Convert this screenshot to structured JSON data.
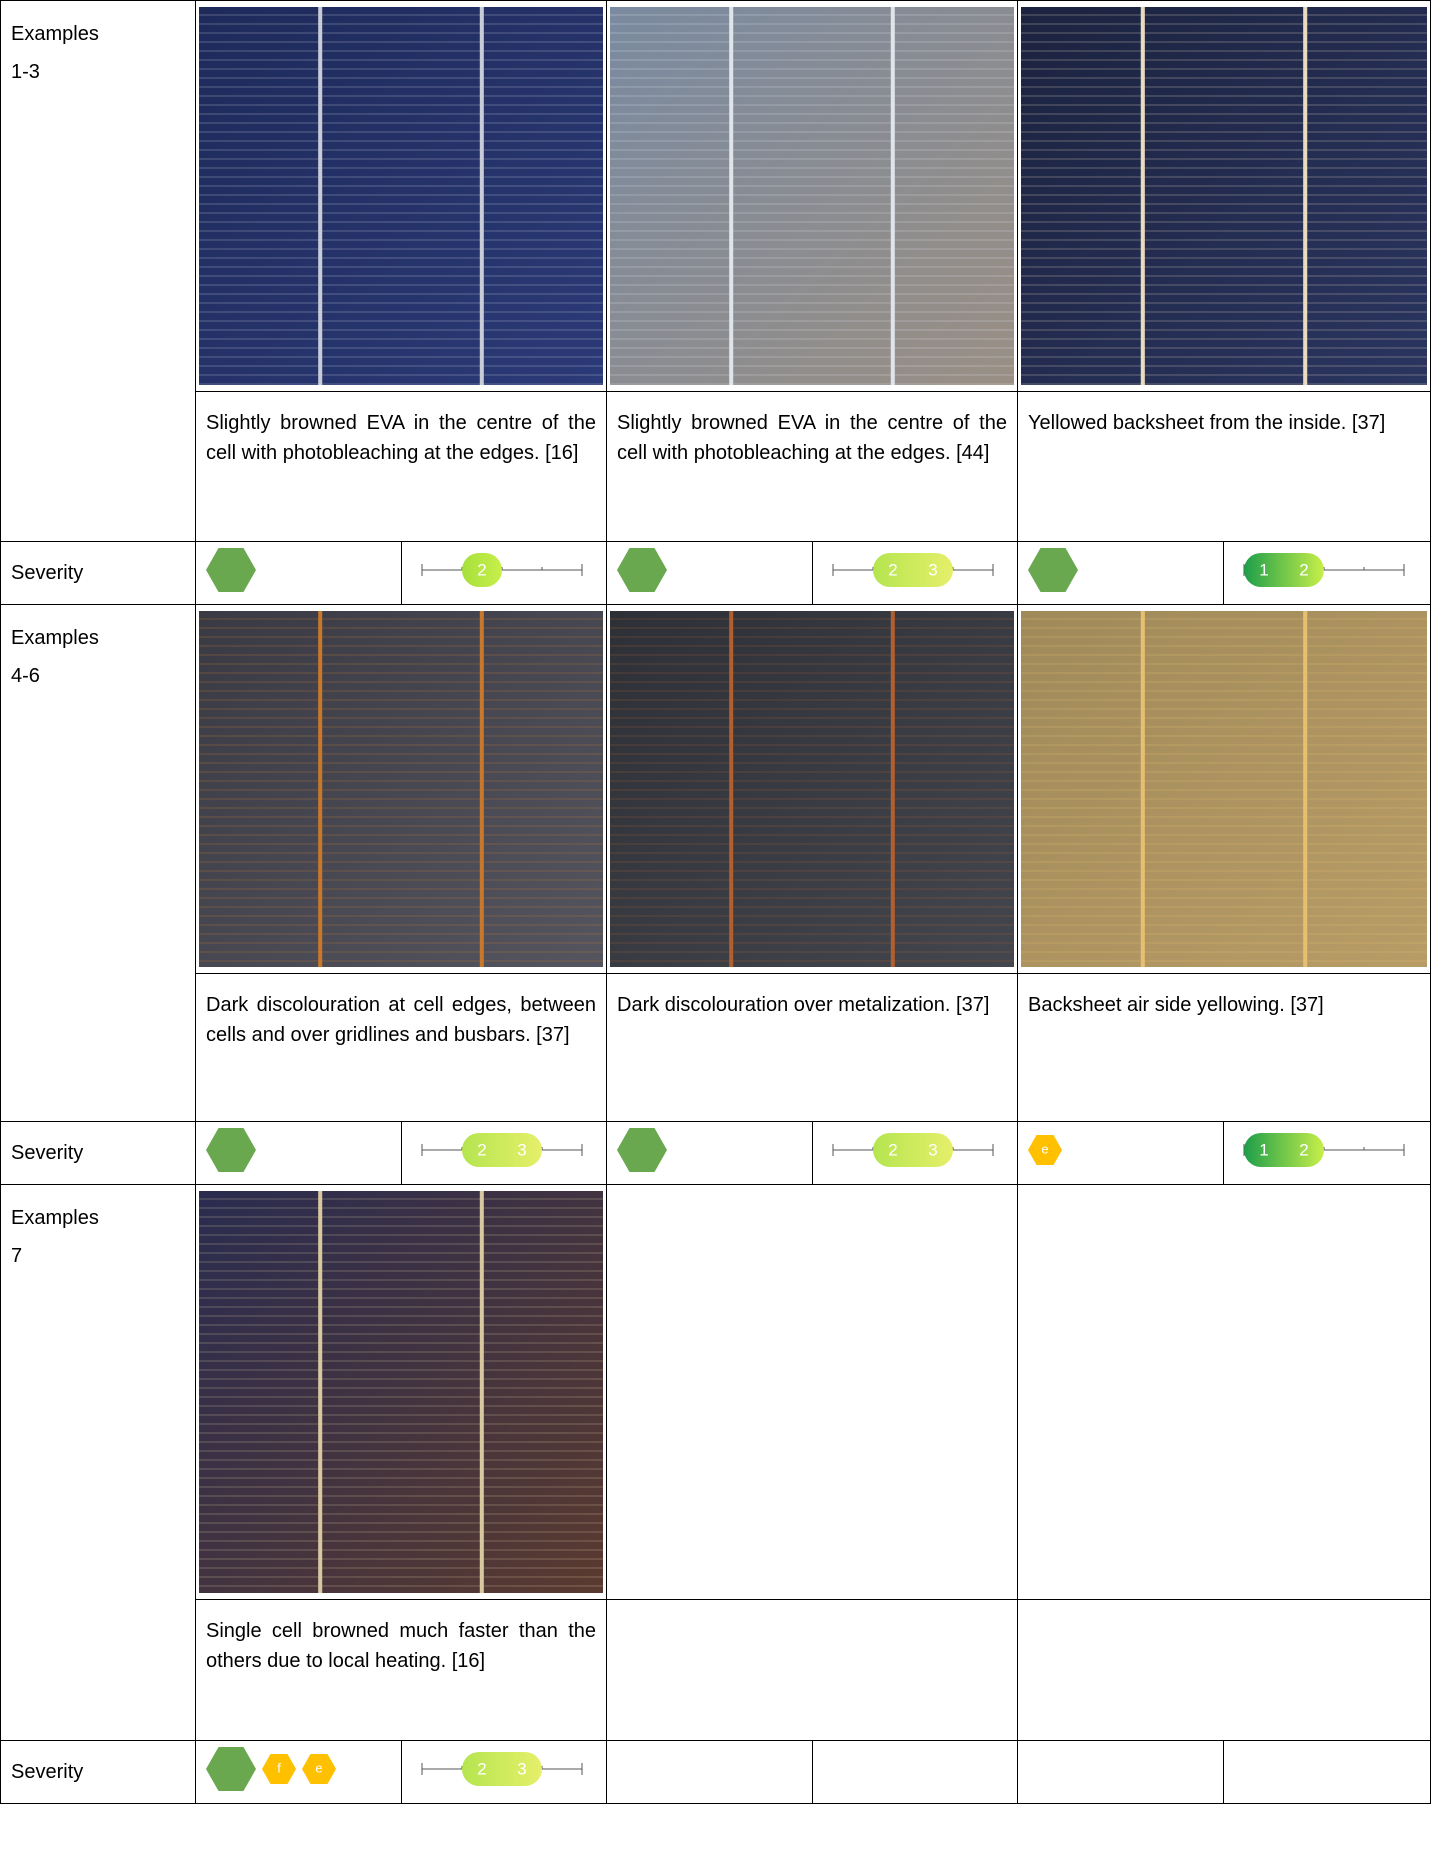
{
  "rows": [
    {
      "label": "Examples",
      "range": "1-3",
      "severity_label": "Severity",
      "examples": [
        {
          "caption": "Slightly browned EVA in the centre of the cell with photobleaching at the edges. [16]",
          "hexagons": [
            {
              "color": "#6aa84f"
            }
          ],
          "scale": {
            "levels": [
              2
            ],
            "colors": [
              "#a6e03c",
              "#c8ef4a"
            ]
          }
        },
        {
          "caption": "Slightly browned EVA in the centre of the cell with photobleaching at the edges. [44]",
          "hexagons": [
            {
              "color": "#6aa84f"
            }
          ],
          "scale": {
            "levels": [
              2,
              3
            ],
            "colors": [
              "#b5e550",
              "#e6ef6a"
            ]
          }
        },
        {
          "caption": "Yellowed backsheet from the inside. [37]",
          "hexagons": [
            {
              "color": "#6aa84f"
            }
          ],
          "scale": {
            "levels": [
              1,
              2
            ],
            "colors": [
              "#1d9e4a",
              "#c8ef4a"
            ]
          }
        }
      ]
    },
    {
      "label": "Examples",
      "range": "4-6",
      "severity_label": "Severity",
      "examples": [
        {
          "caption": "Dark discolouration at cell edges, between cells and over gridlines and busbars. [37]",
          "hexagons": [
            {
              "color": "#6aa84f"
            }
          ],
          "scale": {
            "levels": [
              2,
              3
            ],
            "colors": [
              "#b5e550",
              "#e6ef6a"
            ]
          }
        },
        {
          "caption": "Dark discolouration over metalization. [37]",
          "hexagons": [
            {
              "color": "#6aa84f"
            }
          ],
          "scale": {
            "levels": [
              2,
              3
            ],
            "colors": [
              "#b5e550",
              "#e6ef6a"
            ]
          }
        },
        {
          "caption": "Backsheet air side yellowing. [37]",
          "hexagons": [
            {
              "color": "#ffc000",
              "label": "e"
            }
          ],
          "scale": {
            "levels": [
              1,
              2
            ],
            "colors": [
              "#1d9e4a",
              "#c8ef4a"
            ]
          }
        }
      ]
    },
    {
      "label": "Examples",
      "range": "7",
      "severity_label": "Severity",
      "examples": [
        {
          "caption": "Single cell browned much faster than the others due to local heating. [16]",
          "hexagons": [
            {
              "color": "#6aa84f"
            },
            {
              "color": "#ffc000",
              "label": "f"
            },
            {
              "color": "#ffc000",
              "label": "e"
            }
          ],
          "scale": {
            "levels": [
              2,
              3
            ],
            "colors": [
              "#b5e550",
              "#e6ef6a"
            ]
          }
        }
      ]
    }
  ]
}
